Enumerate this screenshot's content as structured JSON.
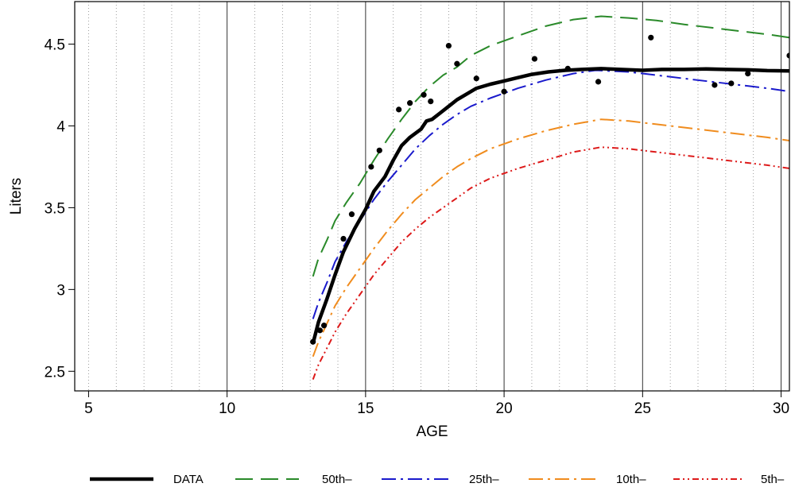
{
  "chart_data": {
    "type": "line",
    "xlabel": "AGE",
    "ylabel": "Liters",
    "xlim": [
      4.5,
      30.3
    ],
    "ylim": [
      2.38,
      4.76
    ],
    "x_ticks": [
      5,
      10,
      15,
      20,
      25,
      30
    ],
    "x_tick_labels": [
      "5",
      "10",
      "15",
      "20",
      "25",
      "30"
    ],
    "y_ticks": [
      2.5,
      3,
      3.5,
      4,
      4.5
    ],
    "y_tick_labels": [
      "2.5",
      "3",
      "3.5",
      "4",
      "4.5"
    ],
    "grid": {
      "major_x": [
        10,
        15,
        20,
        25,
        30
      ],
      "minor_x_step": 1,
      "minor_style": "dotted"
    },
    "legend": {
      "placement": "bottom",
      "entries": [
        "DATA",
        "50th–",
        "25th–",
        "10th–",
        "5th–"
      ]
    },
    "series": [
      {
        "name": "DATA",
        "style": "solid",
        "color": "#000000",
        "width": 4.5,
        "x": [
          13.1,
          13.3,
          13.6,
          13.9,
          14.2,
          14.6,
          15.0,
          15.3,
          15.7,
          16.0,
          16.3,
          16.6,
          17.0,
          17.2,
          17.4,
          17.7,
          18.0,
          18.3,
          18.7,
          19.0,
          19.5,
          20.0,
          20.5,
          21.0,
          21.6,
          22.2,
          22.8,
          23.5,
          24.2,
          25.0,
          25.7,
          26.5,
          27.3,
          28.0,
          28.8,
          29.5,
          30.3
        ],
        "y": [
          2.67,
          2.8,
          2.94,
          3.09,
          3.23,
          3.37,
          3.49,
          3.6,
          3.69,
          3.79,
          3.88,
          3.93,
          3.98,
          4.03,
          4.04,
          4.08,
          4.12,
          4.16,
          4.2,
          4.23,
          4.255,
          4.275,
          4.295,
          4.315,
          4.33,
          4.34,
          4.345,
          4.35,
          4.345,
          4.34,
          4.345,
          4.345,
          4.348,
          4.345,
          4.343,
          4.338,
          4.336
        ]
      },
      {
        "name": "50th–",
        "style": "dashed",
        "color": "#2a8a2a",
        "width": 2,
        "x": [
          13.1,
          13.3,
          13.6,
          13.9,
          14.3,
          14.8,
          15.3,
          15.8,
          16.3,
          16.8,
          17.3,
          17.8,
          18.3,
          18.8,
          19.5,
          20.5,
          21.5,
          22.5,
          23.5,
          24.5,
          25.5,
          26.5,
          27.5,
          28.5,
          29.5,
          30.3
        ],
        "y": [
          3.08,
          3.19,
          3.3,
          3.42,
          3.53,
          3.65,
          3.79,
          3.92,
          4.04,
          4.15,
          4.24,
          4.31,
          4.36,
          4.43,
          4.49,
          4.55,
          4.61,
          4.65,
          4.67,
          4.66,
          4.645,
          4.62,
          4.6,
          4.58,
          4.56,
          4.54
        ]
      },
      {
        "name": "25th–",
        "style": "dashdot",
        "color": "#1a1acc",
        "width": 2,
        "x": [
          13.1,
          13.3,
          13.6,
          13.9,
          14.3,
          14.8,
          15.3,
          15.8,
          16.3,
          16.8,
          17.3,
          17.8,
          18.3,
          18.8,
          19.5,
          20.5,
          21.5,
          22.5,
          23.3,
          24.5,
          25.5,
          26.5,
          27.5,
          28.5,
          29.5,
          30.3
        ],
        "y": [
          2.82,
          2.92,
          3.04,
          3.17,
          3.29,
          3.42,
          3.55,
          3.66,
          3.76,
          3.86,
          3.94,
          4.01,
          4.07,
          4.12,
          4.17,
          4.23,
          4.28,
          4.32,
          4.34,
          4.33,
          4.31,
          4.29,
          4.27,
          4.25,
          4.23,
          4.21
        ]
      },
      {
        "name": "10th–",
        "style": "dashdot",
        "color": "#f08c1e",
        "width": 2,
        "x": [
          13.1,
          13.3,
          13.6,
          13.9,
          14.3,
          14.8,
          15.3,
          15.8,
          16.3,
          16.8,
          17.3,
          17.8,
          18.3,
          18.8,
          19.5,
          20.5,
          21.5,
          22.5,
          23.5,
          24.5,
          25.5,
          26.5,
          27.5,
          28.5,
          29.5,
          30.3
        ],
        "y": [
          2.59,
          2.68,
          2.79,
          2.9,
          3.01,
          3.13,
          3.25,
          3.36,
          3.46,
          3.55,
          3.62,
          3.69,
          3.75,
          3.8,
          3.86,
          3.92,
          3.97,
          4.01,
          4.04,
          4.03,
          4.01,
          3.99,
          3.97,
          3.95,
          3.93,
          3.91
        ]
      },
      {
        "name": "5th–",
        "style": "dashdotdot",
        "color": "#dd1a1a",
        "width": 2,
        "x": [
          13.1,
          13.3,
          13.6,
          13.9,
          14.3,
          14.8,
          15.3,
          15.8,
          16.3,
          16.8,
          17.3,
          17.8,
          18.3,
          18.8,
          19.5,
          20.5,
          21.5,
          22.5,
          23.5,
          24.5,
          25.5,
          26.5,
          27.5,
          28.5,
          29.5,
          30.3
        ],
        "y": [
          2.45,
          2.54,
          2.64,
          2.74,
          2.85,
          2.97,
          3.09,
          3.19,
          3.29,
          3.37,
          3.44,
          3.5,
          3.56,
          3.62,
          3.68,
          3.74,
          3.79,
          3.84,
          3.87,
          3.86,
          3.84,
          3.82,
          3.8,
          3.78,
          3.76,
          3.74
        ]
      }
    ],
    "points": {
      "color": "#000000",
      "x": [
        13.1,
        13.35,
        13.5,
        14.2,
        14.5,
        15.2,
        15.5,
        16.2,
        16.6,
        17.1,
        17.35,
        18.0,
        18.3,
        19.0,
        20.0,
        21.1,
        22.3,
        23.4,
        25.3,
        27.6,
        28.2,
        28.8,
        30.3
      ],
      "y": [
        2.68,
        2.75,
        2.78,
        3.31,
        3.46,
        3.75,
        3.85,
        4.1,
        4.14,
        4.19,
        4.15,
        4.49,
        4.38,
        4.29,
        4.21,
        4.41,
        4.35,
        4.27,
        4.54,
        4.25,
        4.26,
        4.32,
        4.43
      ]
    }
  }
}
